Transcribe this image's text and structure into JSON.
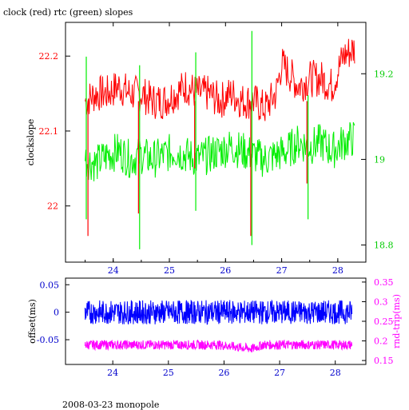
{
  "title": "clock (red) rtc (green) slopes",
  "footer": "2008-03-23 monopole",
  "colors": {
    "clock": "#ff0000",
    "rtc": "#00ee00",
    "offset": "#0000ff",
    "rndtrip": "#ff00ff",
    "axis": "#000000"
  },
  "chart_data": [
    {
      "type": "line",
      "title": "clock (red) rtc (green) slopes",
      "xlim": [
        23.15,
        28.5
      ],
      "xticks": [
        24,
        25,
        26,
        27,
        28
      ],
      "xtick_labels": [
        "24",
        "25",
        "26",
        "27",
        "28"
      ],
      "ylabel": "clockslope",
      "ylim": [
        21.925,
        22.245
      ],
      "yticks": [
        22.0,
        22.1,
        22.2
      ],
      "ytick_labels": [
        "22",
        "22.1",
        "22.2"
      ],
      "y2lim": [
        18.76,
        19.32
      ],
      "y2ticks": [
        18.8,
        19.0,
        19.2
      ],
      "y2tick_labels": [
        "18.8",
        "19",
        "19.2"
      ],
      "grid": false,
      "series": [
        {
          "name": "clock (red)",
          "axis": "left",
          "x": [
            23.5,
            23.7,
            23.9,
            24.1,
            24.3,
            24.5,
            24.7,
            24.9,
            25.1,
            25.3,
            25.5,
            25.7,
            25.9,
            26.1,
            26.3,
            26.5,
            26.7,
            26.9,
            27.0,
            27.1,
            27.3,
            27.5,
            27.7,
            27.9,
            28.0,
            28.1,
            28.3
          ],
          "y": [
            22.14,
            22.15,
            22.15,
            22.16,
            22.15,
            22.15,
            22.14,
            22.14,
            22.15,
            22.16,
            22.15,
            22.15,
            22.14,
            22.15,
            22.14,
            22.14,
            22.13,
            22.15,
            22.19,
            22.18,
            22.16,
            22.17,
            22.17,
            22.16,
            22.18,
            22.2,
            22.21
          ],
          "spikes": [
            {
              "x": 23.55,
              "y": 21.96
            },
            {
              "x": 24.45,
              "y": 21.99
            },
            {
              "x": 25.45,
              "y": 22.05
            },
            {
              "x": 26.45,
              "y": 21.96
            },
            {
              "x": 27.45,
              "y": 22.03
            }
          ]
        },
        {
          "name": "rtc (green)",
          "axis": "right",
          "x": [
            23.5,
            23.7,
            23.9,
            24.1,
            24.3,
            24.5,
            24.7,
            24.9,
            25.1,
            25.3,
            25.5,
            25.7,
            25.9,
            26.1,
            26.3,
            26.5,
            26.7,
            26.9,
            27.1,
            27.3,
            27.5,
            27.7,
            27.9,
            28.1,
            28.3
          ],
          "y": [
            19.0,
            18.99,
            19.01,
            19.02,
            19.0,
            19.01,
            19.0,
            19.01,
            19.02,
            19.01,
            19.0,
            19.01,
            19.02,
            19.03,
            19.02,
            19.01,
            19.0,
            19.01,
            19.02,
            19.04,
            19.03,
            19.04,
            19.02,
            19.04,
            19.05
          ],
          "spikes": [
            {
              "x": 23.52,
              "y": 19.24,
              "y2": 18.86
            },
            {
              "x": 24.47,
              "y": 19.22,
              "y2": 18.79
            },
            {
              "x": 25.47,
              "y": 19.25,
              "y2": 18.88
            },
            {
              "x": 26.47,
              "y": 19.3,
              "y2": 18.8
            },
            {
              "x": 27.47,
              "y": 19.15,
              "y2": 18.86
            }
          ]
        }
      ]
    },
    {
      "type": "line",
      "xlim": [
        23.15,
        28.55
      ],
      "xticks": [
        24,
        25,
        26,
        27,
        28
      ],
      "xtick_labels": [
        "24",
        "25",
        "26",
        "27",
        "28"
      ],
      "ylabel": "offset(ms)",
      "ylim": [
        -0.095,
        0.062
      ],
      "yticks": [
        -0.05,
        0,
        0.05
      ],
      "ytick_labels": [
        "-0.05",
        "0",
        "0.05"
      ],
      "y2label": "rnd-trip(ms)",
      "y2lim": [
        0.14,
        0.36
      ],
      "y2ticks": [
        0.15,
        0.2,
        0.25,
        0.3,
        0.35
      ],
      "y2tick_labels": [
        "0.15",
        "0.2",
        "0.25",
        "0.3",
        "0.35"
      ],
      "grid": false,
      "series": [
        {
          "name": "offset(ms)",
          "axis": "left",
          "x": [
            23.5,
            24.3,
            25.1,
            25.9,
            26.7,
            27.5,
            28.3
          ],
          "y": [
            0.0,
            0.0,
            0.0,
            0.0,
            0.0,
            0.0,
            0.0
          ],
          "noise": 0.022
        },
        {
          "name": "rnd-trip(ms)",
          "axis": "right",
          "x": [
            23.5,
            24.3,
            25.1,
            25.9,
            26.5,
            26.7,
            27.5,
            28.3
          ],
          "y": [
            0.19,
            0.19,
            0.19,
            0.19,
            0.18,
            0.19,
            0.19,
            0.19
          ],
          "noise": 0.012
        }
      ]
    }
  ]
}
